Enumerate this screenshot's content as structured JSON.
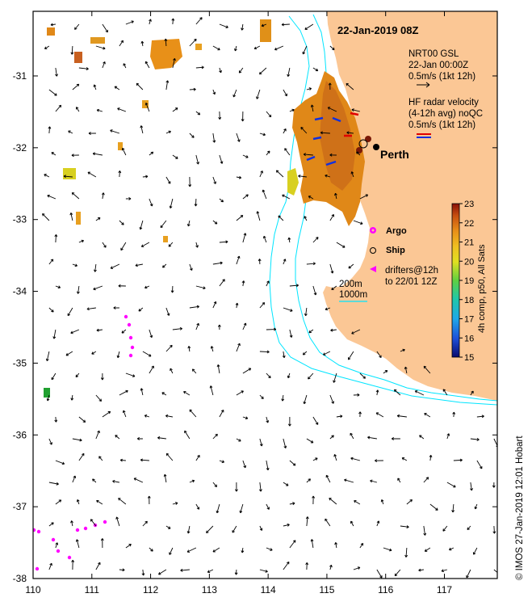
{
  "header": {
    "datetime": "22-Jan-2019 08Z"
  },
  "place_label": "Perth",
  "legend": {
    "model_lines": [
      "NRT00 GSL",
      "22-Jan 00:00Z",
      "0.5m/s (1kt 12h)"
    ],
    "radar_lines": [
      "HF radar velocity",
      "(4-12h avg) noQC",
      "0.5m/s (1kt 12h)"
    ],
    "argo_label": "Argo",
    "ship_label": "Ship",
    "drifter_lines": [
      "drifters@12h",
      "to 22/01 12Z"
    ],
    "contour_200": "200m",
    "contour_1000": "1000m",
    "arrow_colors": {
      "model": "#000000",
      "radar_red": "#e00000",
      "radar_blue": "#1030e0"
    }
  },
  "colorbar": {
    "min": 15,
    "max": 23,
    "ticks": [
      15,
      16,
      17,
      18,
      19,
      20,
      21,
      22,
      23
    ],
    "label": "4h comp, p50, All Sats"
  },
  "axes": {
    "lon_ticks": [
      110,
      111,
      112,
      113,
      114,
      115,
      116,
      117
    ],
    "lat_ticks": [
      -31,
      -32,
      -33,
      -34,
      -35,
      -36,
      -37,
      -38
    ],
    "lon_range": [
      110,
      117.9
    ],
    "lat_range": [
      -38,
      -30.1
    ]
  },
  "credit": "© IMOS 27-Jan-2019 12:01 Hobart",
  "colors": {
    "land": "#fbc795",
    "contour": "#00e5ff",
    "argo": "#ff00ff",
    "drifter": "#ff00ff"
  }
}
